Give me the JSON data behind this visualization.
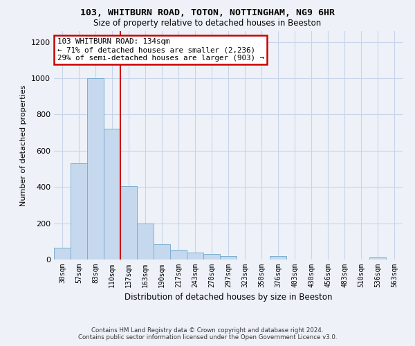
{
  "title1": "103, WHITBURN ROAD, TOTON, NOTTINGHAM, NG9 6HR",
  "title2": "Size of property relative to detached houses in Beeston",
  "xlabel": "Distribution of detached houses by size in Beeston",
  "ylabel": "Number of detached properties",
  "footer": "Contains HM Land Registry data © Crown copyright and database right 2024.\nContains public sector information licensed under the Open Government Licence v3.0.",
  "bar_labels": [
    "30sqm",
    "57sqm",
    "83sqm",
    "110sqm",
    "137sqm",
    "163sqm",
    "190sqm",
    "217sqm",
    "243sqm",
    "270sqm",
    "297sqm",
    "323sqm",
    "350sqm",
    "376sqm",
    "403sqm",
    "430sqm",
    "456sqm",
    "483sqm",
    "510sqm",
    "536sqm",
    "563sqm"
  ],
  "bar_values": [
    65,
    530,
    1000,
    720,
    405,
    200,
    85,
    55,
    40,
    30,
    20,
    0,
    0,
    20,
    0,
    0,
    0,
    0,
    0,
    10,
    0
  ],
  "bar_color": "#c5d8ed",
  "bar_edge_color": "#7aaed0",
  "grid_color": "#c8d4e8",
  "annotation_text_line1": "103 WHITBURN ROAD: 134sqm",
  "annotation_text_line2": "← 71% of detached houses are smaller (2,236)",
  "annotation_text_line3": "29% of semi-detached houses are larger (903) →",
  "annotation_box_color": "#ffffff",
  "annotation_box_edge_color": "#cc0000",
  "vline_color": "#cc0000",
  "vline_x": 3.5,
  "ylim": [
    0,
    1260
  ],
  "yticks": [
    0,
    200,
    400,
    600,
    800,
    1000,
    1200
  ],
  "background_color": "#eef2f8"
}
